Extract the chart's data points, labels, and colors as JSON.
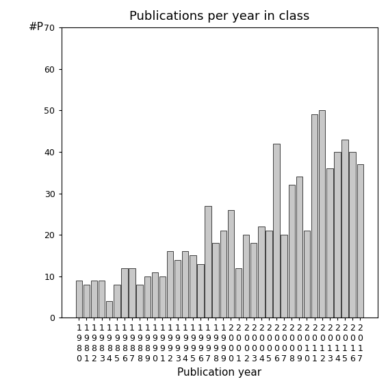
{
  "title": "Publications per year in class",
  "xlabel": "Publication year",
  "ylabel": "#P",
  "years": [
    1980,
    1981,
    1982,
    1983,
    1984,
    1985,
    1986,
    1987,
    1988,
    1989,
    1990,
    1991,
    1992,
    1993,
    1994,
    1995,
    1996,
    1997,
    1998,
    1999,
    2000,
    2001,
    2002,
    2003,
    2004,
    2005,
    2006,
    2007,
    2008,
    2009,
    2010,
    2011,
    2012,
    2013,
    2014,
    2015,
    2016,
    2017
  ],
  "values": [
    9,
    8,
    9,
    9,
    4,
    8,
    12,
    12,
    8,
    10,
    11,
    10,
    16,
    14,
    16,
    15,
    13,
    27,
    18,
    21,
    26,
    12,
    20,
    18,
    22,
    21,
    42,
    20,
    32,
    34,
    21,
    49,
    50,
    36,
    40,
    43,
    40,
    37
  ],
  "bar_color": "#c8c8c8",
  "bar_edge_color": "#000000",
  "ylim": [
    0,
    70
  ],
  "yticks": [
    0,
    10,
    20,
    30,
    40,
    50,
    60,
    70
  ],
  "background_color": "#ffffff",
  "title_fontsize": 13,
  "axis_fontsize": 11,
  "tick_fontsize": 9
}
